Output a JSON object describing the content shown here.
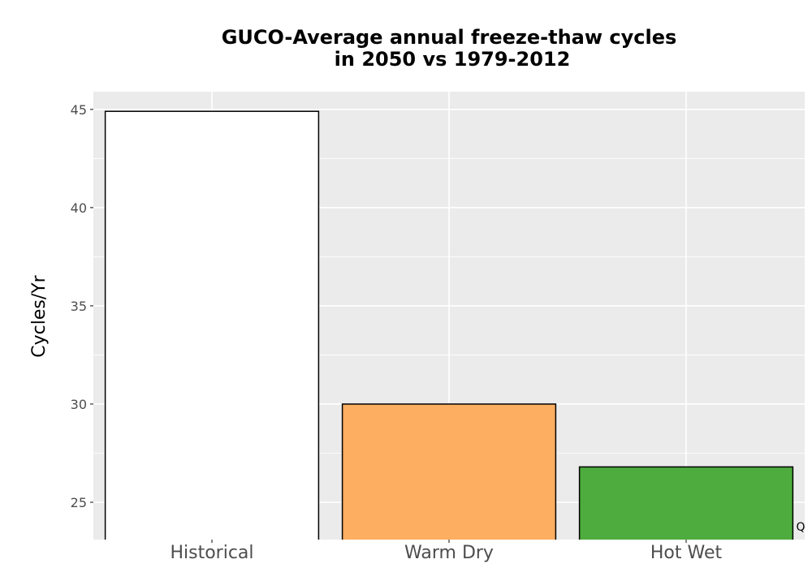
{
  "chart_data": {
    "type": "bar",
    "title_lines": [
      "GUCO-Average annual freeze-thaw cycles",
      "in 2050 vs 1979-2012"
    ],
    "xlabel": "",
    "ylabel": "Cycles/Yr",
    "categories": [
      "Historical",
      "Warm Dry",
      "Hot Wet"
    ],
    "values": [
      44.9,
      30.0,
      26.8
    ],
    "colors": [
      "#ffffff",
      "#fdae61",
      "#4dac3d"
    ],
    "bar_outline": "#000000",
    "y_ticks": [
      25,
      30,
      35,
      40,
      45
    ],
    "y_tick_labels": [
      "25",
      "30",
      "35",
      "40",
      "45"
    ],
    "ylim": [
      23.1,
      45.9
    ],
    "grid": true,
    "panel_background": "#ebebeb",
    "gridline_color": "#ffffff",
    "legend": "none"
  },
  "corner_mark": "Q"
}
